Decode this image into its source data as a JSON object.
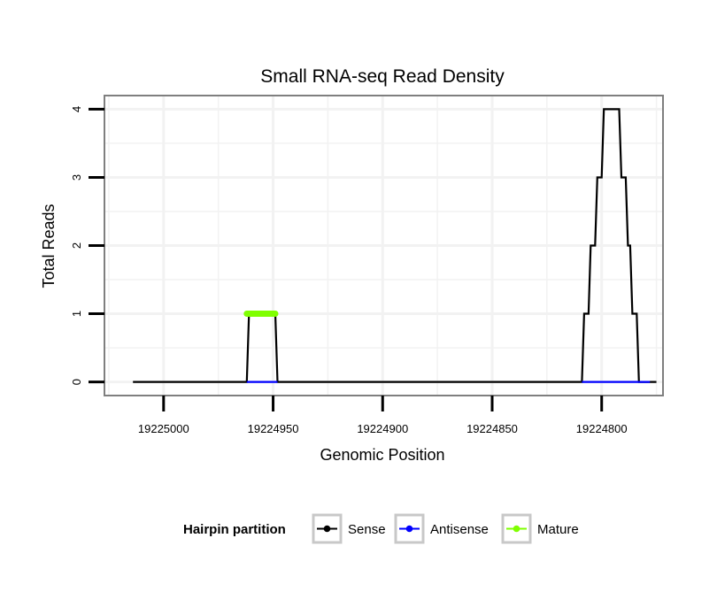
{
  "chart_data": {
    "type": "line",
    "title": "Small RNA-seq Read Density",
    "xlabel": "Genomic Position",
    "ylabel": "Total Reads",
    "x_reversed": true,
    "xlim": [
      19225027,
      19224772
    ],
    "ylim": [
      -0.2,
      4.2
    ],
    "x_ticks": [
      19225000,
      19224950,
      19224900,
      19224850,
      19224800
    ],
    "x_tick_labels": [
      "19225000",
      "19224950",
      "19224900",
      "19224850",
      "19224800"
    ],
    "y_ticks": [
      0,
      1,
      2,
      3,
      4
    ],
    "y_tick_labels": [
      "0",
      "1",
      "2",
      "3",
      "4"
    ],
    "grid": true,
    "legend": {
      "title": "Hairpin partition",
      "position": "bottom",
      "entries": [
        {
          "name": "Sense",
          "color": "#000000"
        },
        {
          "name": "Antisense",
          "color": "#0000ff"
        },
        {
          "name": "Mature",
          "color": "#7fff00"
        }
      ]
    },
    "series": [
      {
        "name": "Sense",
        "color": "#000000",
        "x": [
          19225014,
          19224962,
          19224961,
          19224949,
          19224948,
          19224809,
          19224808,
          19224806,
          19224805,
          19224803,
          19224802,
          19224800,
          19224799,
          19224798,
          19224797,
          19224792,
          19224791,
          19224789,
          19224788,
          19224787,
          19224786,
          19224784,
          19224783,
          19224779,
          19224778,
          19224775
        ],
        "y": [
          0,
          0,
          1,
          1,
          0,
          0,
          1,
          1,
          2,
          2,
          3,
          3,
          4,
          4,
          4,
          4,
          3,
          3,
          2,
          2,
          1,
          1,
          0,
          0,
          0,
          0
        ]
      },
      {
        "name": "Antisense",
        "color": "#0000ff",
        "x": [
          19224962,
          19224948
        ],
        "y": [
          0,
          0
        ]
      },
      {
        "name": "Antisense",
        "color": "#0000ff",
        "x": [
          19224809,
          19224778
        ],
        "y": [
          0,
          0
        ]
      },
      {
        "name": "Mature",
        "color": "#7fff00",
        "x": [
          19224962,
          19224949
        ],
        "y": [
          1,
          1
        ]
      }
    ]
  }
}
